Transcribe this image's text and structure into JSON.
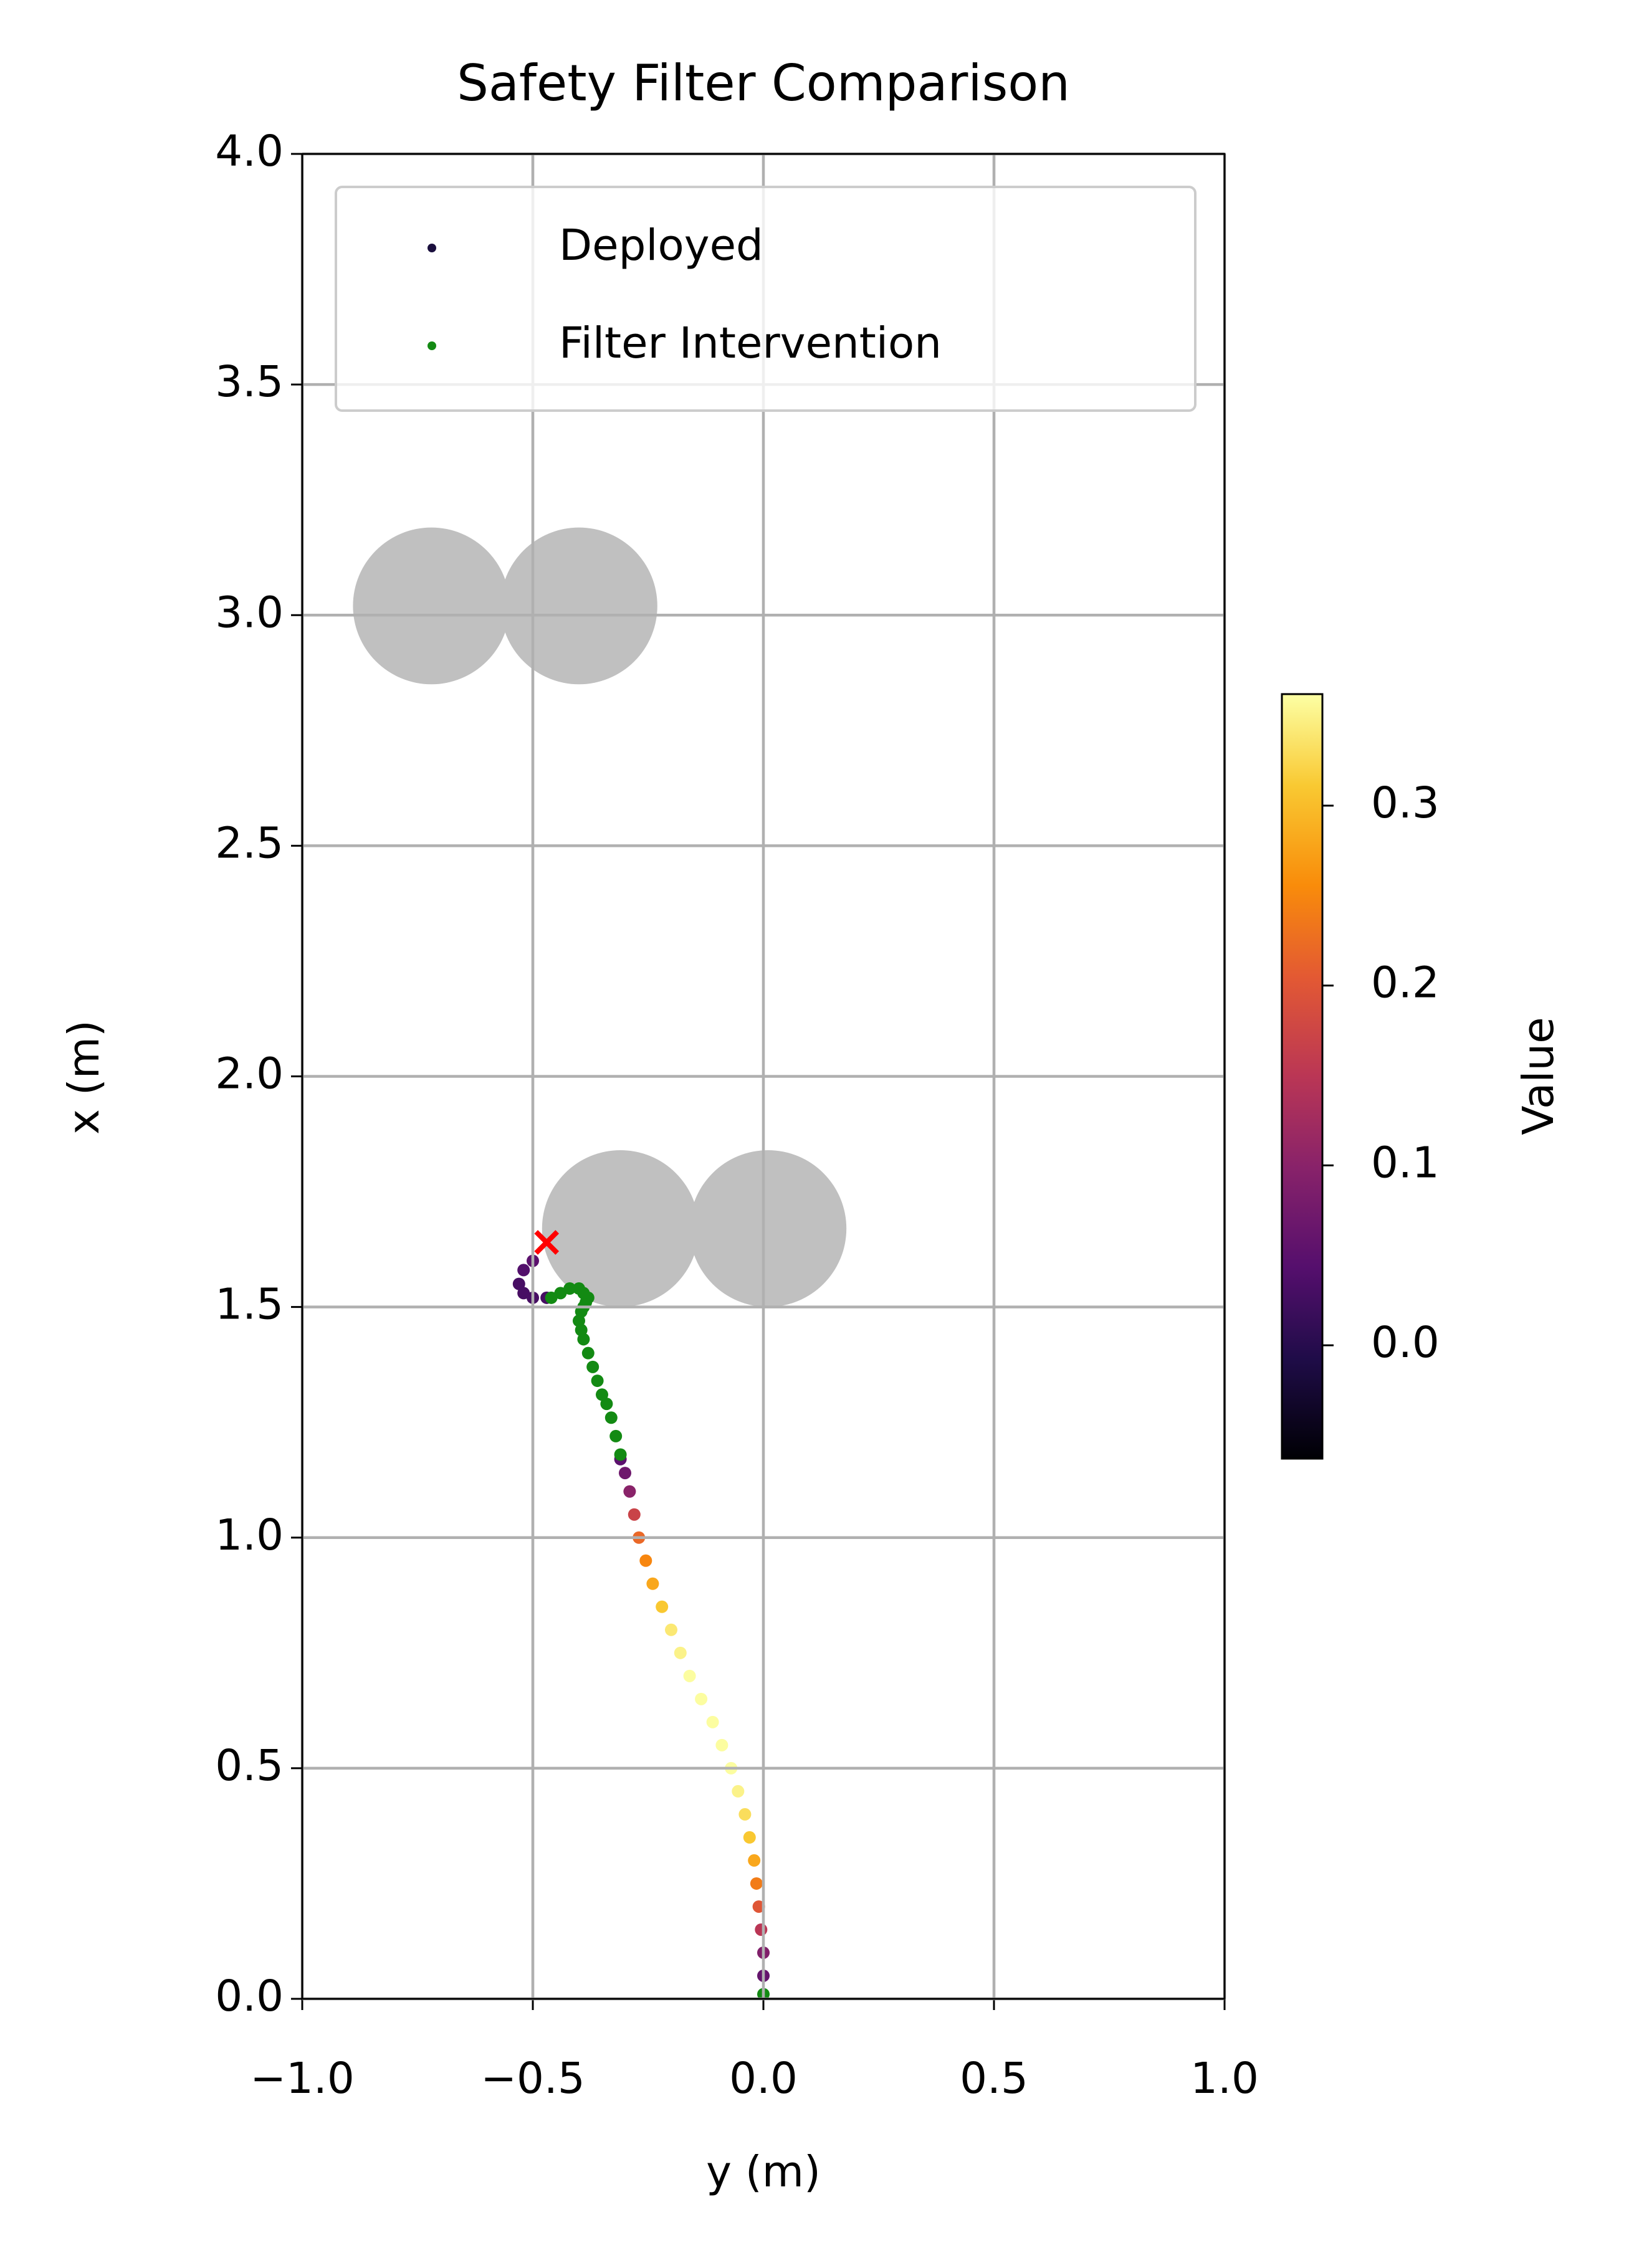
{
  "chart_data": {
    "type": "scatter",
    "title": "Safety Filter Comparison",
    "x_label": "y (m)",
    "y_label": "x (m)",
    "xlim": [
      -1,
      1
    ],
    "ylim": [
      0,
      4
    ],
    "xticks": [
      {
        "value": -1,
        "label": "−1.0"
      },
      {
        "value": -0.5,
        "label": "−0.5"
      },
      {
        "value": 0,
        "label": "0.0"
      },
      {
        "value": 0.5,
        "label": "0.5"
      },
      {
        "value": 1,
        "label": "1.0"
      }
    ],
    "yticks": [
      {
        "value": 0,
        "label": "0.0"
      },
      {
        "value": 0.5,
        "label": "0.5"
      },
      {
        "value": 1,
        "label": "1.0"
      },
      {
        "value": 1.5,
        "label": "1.5"
      },
      {
        "value": 2,
        "label": "2.0"
      },
      {
        "value": 2.5,
        "label": "2.5"
      },
      {
        "value": 3,
        "label": "3.0"
      },
      {
        "value": 3.5,
        "label": "3.5"
      },
      {
        "value": 4,
        "label": "4.0"
      }
    ],
    "grid": true,
    "legend": "upper center",
    "series": [
      {
        "name": "Deployed",
        "color": "#1a0f3d",
        "colormap": "inferno",
        "x": [
          0.0,
          0.0,
          -0.005,
          -0.01,
          -0.015,
          -0.02,
          -0.03,
          -0.04,
          -0.055,
          -0.07,
          -0.09,
          -0.11,
          -0.135,
          -0.16,
          -0.18,
          -0.2,
          -0.22,
          -0.24,
          -0.255,
          -0.27,
          -0.28,
          -0.29,
          -0.3,
          -0.31,
          -0.47,
          -0.5,
          -0.52,
          -0.53,
          -0.52,
          -0.5
        ],
        "y": [
          0.05,
          0.1,
          0.15,
          0.2,
          0.25,
          0.3,
          0.35,
          0.4,
          0.45,
          0.5,
          0.55,
          0.6,
          0.65,
          0.7,
          0.75,
          0.8,
          0.85,
          0.9,
          0.95,
          1.0,
          1.05,
          1.1,
          1.14,
          1.17,
          1.52,
          1.52,
          1.53,
          1.55,
          1.58,
          1.6
        ],
        "values": [
          0.06,
          0.09,
          0.15,
          0.2,
          0.24,
          0.28,
          0.31,
          0.33,
          0.35,
          0.36,
          0.36,
          0.36,
          0.36,
          0.36,
          0.35,
          0.34,
          0.31,
          0.28,
          0.25,
          0.22,
          0.17,
          0.1,
          0.07,
          0.05,
          0.03,
          0.03,
          0.03,
          0.03,
          0.04,
          0.05
        ]
      },
      {
        "name": "Filter Intervention",
        "color": "#138a13",
        "x": [
          0.0,
          -0.31,
          -0.32,
          -0.33,
          -0.34,
          -0.35,
          -0.36,
          -0.37,
          -0.38,
          -0.39,
          -0.395,
          -0.4,
          -0.395,
          -0.39,
          -0.385,
          -0.38,
          -0.39,
          -0.4,
          -0.42,
          -0.44,
          -0.46
        ],
        "y": [
          0.01,
          1.18,
          1.22,
          1.26,
          1.29,
          1.31,
          1.34,
          1.37,
          1.4,
          1.43,
          1.45,
          1.47,
          1.49,
          1.5,
          1.51,
          1.52,
          1.53,
          1.54,
          1.54,
          1.53,
          1.52
        ]
      }
    ],
    "obstacles": {
      "color": "#c0c0c0",
      "x": [
        -0.72,
        -0.4,
        -0.31,
        0.01
      ],
      "y": [
        3.02,
        3.02,
        1.67,
        1.67
      ],
      "radius": [
        0.17,
        0.17,
        0.17,
        0.17
      ]
    },
    "end_marker": {
      "x": -0.47,
      "y": 1.64,
      "color": "#ff0000"
    },
    "colorbar": {
      "label": "Value",
      "lim": [
        -0.063,
        0.362
      ],
      "ticks": [
        {
          "value": 0,
          "label": "0.0"
        },
        {
          "value": 0.1,
          "label": "0.1"
        },
        {
          "value": 0.2,
          "label": "0.2"
        },
        {
          "value": 0.3,
          "label": "0.3"
        }
      ]
    }
  }
}
